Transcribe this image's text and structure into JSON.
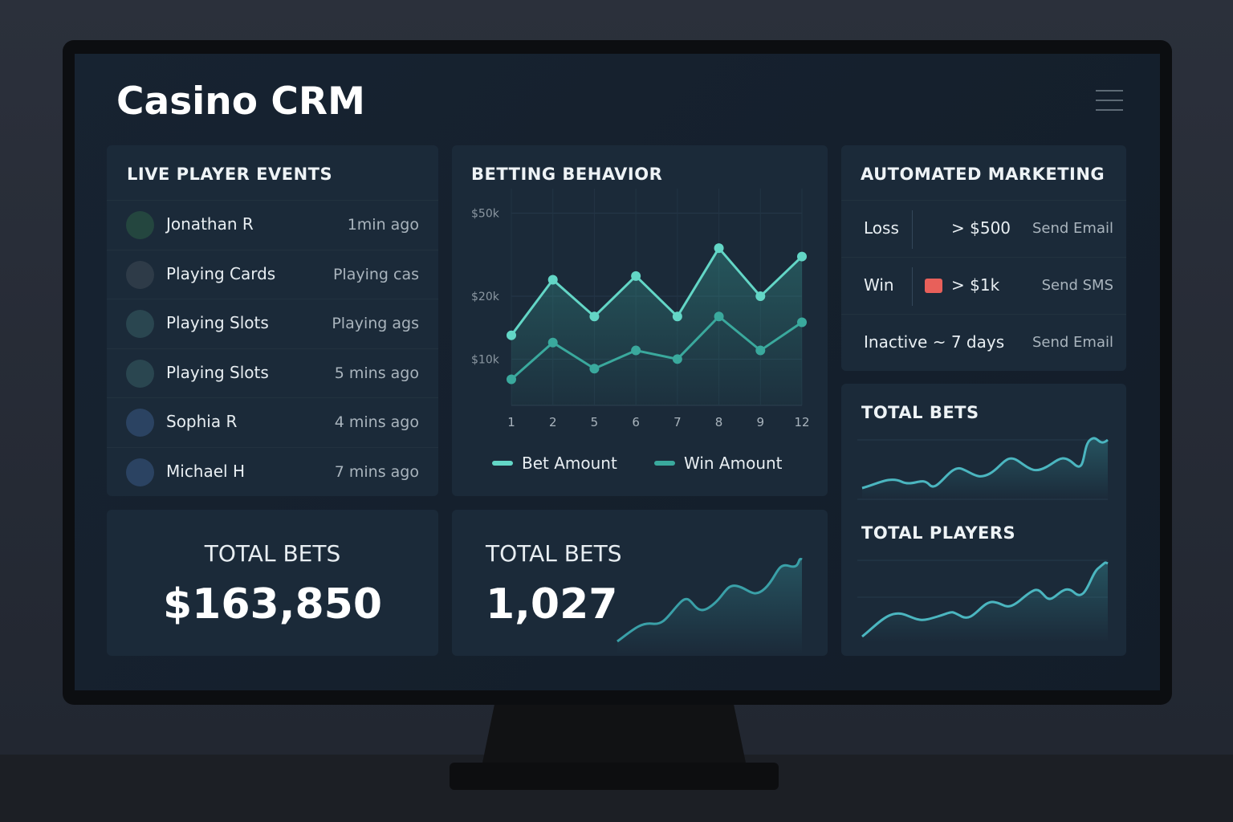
{
  "header": {
    "title": "Casino CRM"
  },
  "live_events": {
    "title": "LIVE PLAYER EVENTS",
    "rows": [
      {
        "name": "Jonathan R",
        "time": "1min ago"
      },
      {
        "name": "Playing Cards",
        "time": "Playing cas"
      },
      {
        "name": "Playing Slots",
        "time": "Playing ags"
      },
      {
        "name": "Playing Slots",
        "time": "5 mins ago"
      },
      {
        "name": "Sophia R",
        "time": "4 mins ago"
      },
      {
        "name": "Michael H",
        "time": "7 mins ago"
      }
    ]
  },
  "chart_data": {
    "type": "line",
    "title": "BETTING BEHAVIOR",
    "categories": [
      "1",
      "2",
      "5",
      "6",
      "7",
      "8",
      "9",
      "12"
    ],
    "series": [
      {
        "name": "Bet Amount",
        "color": "#63d6c6",
        "values": [
          13000,
          24000,
          16000,
          25000,
          16000,
          34000,
          20000,
          31000
        ]
      },
      {
        "name": "Win Amount",
        "color": "#3aa99d",
        "values": [
          8000,
          12000,
          9000,
          11000,
          10000,
          16000,
          11000,
          15000
        ]
      }
    ],
    "ylim": [
      6000,
      60000
    ],
    "log_scale": true,
    "yticks": [
      {
        "value": 10000,
        "label": "$10k"
      },
      {
        "value": 20000,
        "label": "$20k"
      },
      {
        "value": 50000,
        "label": "$50k"
      }
    ],
    "grid": true
  },
  "marketing": {
    "title": "AUTOMATED MARKETING",
    "rules": [
      {
        "trigger": "Loss",
        "condition": "> $500",
        "action": "Send Email"
      },
      {
        "trigger": "Win",
        "condition": "> $1k",
        "action": "Send SMS"
      },
      {
        "trigger": "Inactive ~ 7 days",
        "action": "Send Email"
      }
    ]
  },
  "stats": {
    "bets_card": {
      "label": "TOTAL BETS",
      "value": "$163,850"
    },
    "count_card": {
      "label": "TOTAL BETS",
      "value": "1,027"
    },
    "side_bets": {
      "label": "TOTAL BETS"
    },
    "side_players": {
      "label": "TOTAL PLAYERS"
    }
  }
}
